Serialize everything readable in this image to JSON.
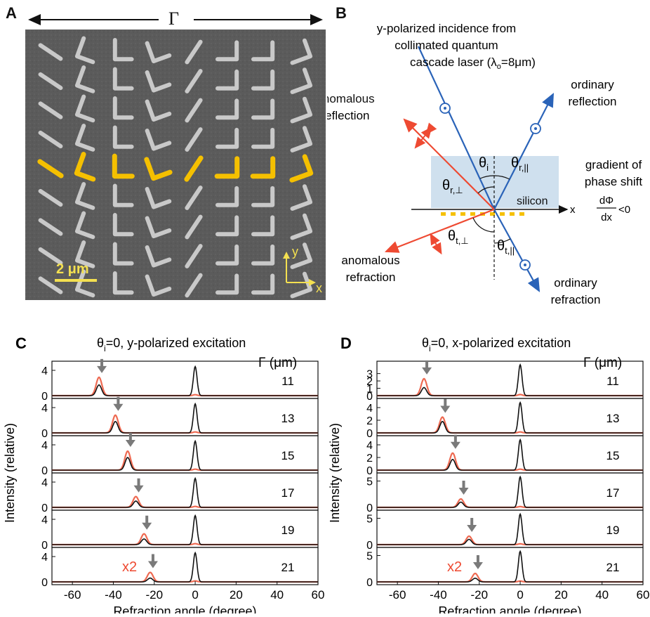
{
  "panelA": {
    "letter": "A",
    "period_label": "Γ",
    "scale_label": "2 μm",
    "axis_y": "y",
    "axis_x": "x"
  },
  "panelB": {
    "letter": "B",
    "incidence_lines": [
      "y-polarized incidence from",
      "collimated quantum",
      "cascade laser (λ",
      "o",
      "=8μm)"
    ],
    "anomalous_reflection": [
      "anomalous",
      "reflection"
    ],
    "ordinary_reflection": [
      "ordinary",
      "reflection"
    ],
    "anomalous_refraction": [
      "anomalous",
      "refraction"
    ],
    "ordinary_refraction": [
      "ordinary",
      "refraction"
    ],
    "gradient": [
      "gradient of",
      "phase shift"
    ],
    "silicon": "silicon",
    "axis_x": "x",
    "theta_i": "θ",
    "theta_i_sub": "i",
    "theta_r_par": "θ",
    "theta_r_par_sub": "r,||",
    "theta_r_perp": "θ",
    "theta_r_perp_sub": "r,⊥",
    "theta_t_perp": "θ",
    "theta_t_perp_sub": "t,⊥",
    "theta_t_par": "θ",
    "theta_t_par_sub": "t,||",
    "fraction_num": "dΦ",
    "fraction_den": "dx",
    "fraction_rel": "<0",
    "colors": {
      "ordinary": "#2a63b8",
      "anomalous": "#ee4a32",
      "silicon": "#cfe0ee",
      "antenna": "#f5c000"
    }
  },
  "chart_data": [
    {
      "type": "line",
      "letter": "C",
      "title_theta": "θ",
      "title_sub": "i",
      "title_rest": "=0, y-polarized excitation",
      "xlabel": "Refraction angle (degree)",
      "ylabel": "Intensity (relative)",
      "gamma_label": "Γ (μm)",
      "x_ticks": [
        "-60",
        "-40",
        "-20",
        "0",
        "20",
        "40",
        "60"
      ],
      "xlim": [
        -70,
        60
      ],
      "x2_label": "x2",
      "rows": [
        {
          "gamma": "11",
          "ylim": [
            0,
            5
          ],
          "yticks": [
            "0",
            "4"
          ],
          "peak_angle": -47,
          "red_amp": 2.9,
          "black_amp": 1.7,
          "center_amp": 4.6
        },
        {
          "gamma": "13",
          "ylim": [
            0,
            5
          ],
          "yticks": [
            "0",
            "4"
          ],
          "peak_angle": -39,
          "red_amp": 2.8,
          "black_amp": 1.8,
          "center_amp": 4.6
        },
        {
          "gamma": "15",
          "ylim": [
            0,
            5
          ],
          "yticks": [
            "0",
            "4"
          ],
          "peak_angle": -33,
          "red_amp": 3.0,
          "black_amp": 2.0,
          "center_amp": 4.6
        },
        {
          "gamma": "17",
          "ylim": [
            0,
            5
          ],
          "yticks": [
            "0",
            "4"
          ],
          "peak_angle": -29,
          "red_amp": 1.7,
          "black_amp": 1.0,
          "center_amp": 4.6
        },
        {
          "gamma": "19",
          "ylim": [
            0,
            5
          ],
          "yticks": [
            "0",
            "4"
          ],
          "peak_angle": -25,
          "red_amp": 1.7,
          "black_amp": 0.9,
          "center_amp": 4.6
        },
        {
          "gamma": "21",
          "ylim": [
            0,
            5
          ],
          "yticks": [
            "0",
            "4"
          ],
          "peak_angle": -22,
          "red_amp": 1.5,
          "black_amp": 0.6,
          "center_amp": 4.6
        }
      ]
    },
    {
      "type": "line",
      "letter": "D",
      "title_theta": "θ",
      "title_sub": "i",
      "title_rest": "=0, x-polarized excitation",
      "xlabel": "Refraction angle (degree)",
      "ylabel": "Intensity (relative)",
      "gamma_label": "Γ (μm)",
      "x_ticks": [
        "-60",
        "-40",
        "-20",
        "0",
        "20",
        "40",
        "60"
      ],
      "xlim": [
        -70,
        60
      ],
      "x2_label": "x2",
      "rows": [
        {
          "gamma": "11",
          "ylim": [
            0,
            4.3
          ],
          "yticks": [
            "0",
            "1",
            "2",
            "3"
          ],
          "peak_angle": -47,
          "red_amp": 2.3,
          "black_amp": 1.1,
          "center_amp": 4.2
        },
        {
          "gamma": "13",
          "ylim": [
            0,
            5
          ],
          "yticks": [
            "0",
            "2",
            "4"
          ],
          "peak_angle": -38,
          "red_amp": 2.5,
          "black_amp": 1.8,
          "center_amp": 4.8
        },
        {
          "gamma": "15",
          "ylim": [
            0,
            5
          ],
          "yticks": [
            "0",
            "2",
            "4"
          ],
          "peak_angle": -33,
          "red_amp": 2.7,
          "black_amp": 1.7,
          "center_amp": 4.8
        },
        {
          "gamma": "17",
          "ylim": [
            0,
            6
          ],
          "yticks": [
            "0",
            "5"
          ],
          "peak_angle": -29,
          "red_amp": 1.6,
          "black_amp": 1.0,
          "center_amp": 5.8
        },
        {
          "gamma": "19",
          "ylim": [
            0,
            6
          ],
          "yticks": [
            "0",
            "5"
          ],
          "peak_angle": -25,
          "red_amp": 1.6,
          "black_amp": 1.0,
          "center_amp": 5.8
        },
        {
          "gamma": "21",
          "ylim": [
            0,
            6
          ],
          "yticks": [
            "0",
            "5"
          ],
          "peak_angle": -22,
          "red_amp": 1.6,
          "black_amp": 0.7,
          "center_amp": 5.8
        }
      ]
    }
  ]
}
